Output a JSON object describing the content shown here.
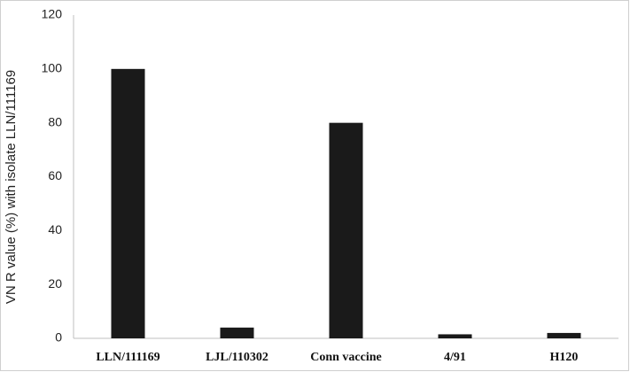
{
  "chart_data": {
    "type": "bar",
    "title": "",
    "xlabel": "",
    "ylabel": "VN R value (%) with isolate LLN/111169",
    "categories": [
      "LLN/111169",
      "LJL/110302",
      "Conn vaccine",
      "4/91",
      "H120"
    ],
    "values": [
      100,
      4,
      80,
      1.5,
      2
    ],
    "ylim": [
      0,
      120
    ],
    "yticks": [
      "0",
      "20",
      "40",
      "60",
      "80",
      "100",
      "120"
    ],
    "grid": false,
    "legend": "none",
    "colors": {
      "bar": "#1a1a1a",
      "axis": "#bfbfbf",
      "frame": "#cfcfcf"
    }
  }
}
